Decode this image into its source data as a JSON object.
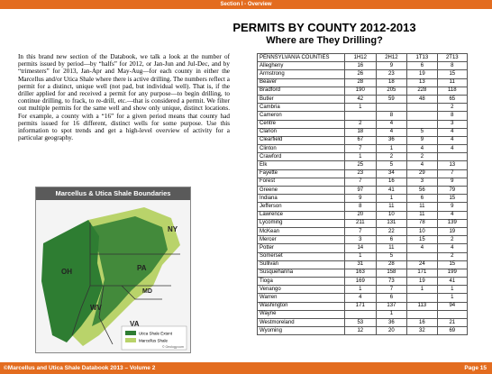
{
  "header": {
    "section": "Section I - Overview"
  },
  "title": {
    "main": "PERMITS BY COUNTY 2012-2013",
    "subtitle": "Where are They Drilling?"
  },
  "body_text": "In this brand new section of the Databook, we talk a look at the number of permits issued by period—by “halfs” for 2012, or Jan-Jun and Jul-Dec, and by “trimesters” for 2013, Jan-Apr and May-Aug—for each county in either the Marcellus and/or Utica Shale where there is active drilling. The numbers reflect a permit for a distinct, unique well (not pad, but individual well). That is, if the driller applied for and received a permit for any purpose—to begin drilling, to continue drilling, to frack, to re-drill, etc.—that is considered a permit. We filter out multiple permits for the same well and show only unique, distinct locations. For example, a county with a “16” for a given period means that county had permits issued for 16 different, distinct wells for some purpose. Use this information to spot trends and get a high-level overview of activity for a particular geography.",
  "map": {
    "title": "Marcellus & Utica Shale Boundaries",
    "states": [
      "NY",
      "PA",
      "OH",
      "WV",
      "MD",
      "VA"
    ],
    "legend": [
      "Utica Shale Extent",
      "Marcellus Shale"
    ],
    "credit": "© Geology.com",
    "colors": {
      "utica": "#2e7d32",
      "marcellus": "#b9d36a"
    }
  },
  "table": {
    "columns": [
      "PENNSYLVANIA COUNTIES",
      "1H12",
      "2H12",
      "1T13",
      "2T13"
    ],
    "rows": [
      [
        "Allegheny",
        "16",
        "9",
        "6",
        "8"
      ],
      [
        "Armstrong",
        "26",
        "23",
        "19",
        "15"
      ],
      [
        "Beaver",
        "28",
        "18",
        "13",
        "11"
      ],
      [
        "Bradford",
        "190",
        "205",
        "228",
        "118"
      ],
      [
        "Butler",
        "42",
        "59",
        "48",
        "65"
      ],
      [
        "Cambria",
        "1",
        "",
        "",
        "2"
      ],
      [
        "Cameron",
        "",
        "8",
        "",
        "8"
      ],
      [
        "Centre",
        "2",
        "4",
        "",
        "3"
      ],
      [
        "Clarion",
        "18",
        "4",
        "5",
        "4"
      ],
      [
        "Clearfield",
        "67",
        "36",
        "9",
        "4"
      ],
      [
        "Clinton",
        "7",
        "1",
        "4",
        "4"
      ],
      [
        "Crawford",
        "1",
        "2",
        "2",
        ""
      ],
      [
        "Elk",
        "25",
        "5",
        "4",
        "13"
      ],
      [
        "Fayette",
        "23",
        "34",
        "29",
        "7"
      ],
      [
        "Forest",
        "7",
        "16",
        "3",
        "9"
      ],
      [
        "Greene",
        "97",
        "41",
        "56",
        "79"
      ],
      [
        "Indiana",
        "9",
        "1",
        "6",
        "15"
      ],
      [
        "Jefferson",
        "8",
        "11",
        "11",
        "9"
      ],
      [
        "Lawrence",
        "20",
        "10",
        "11",
        "4"
      ],
      [
        "Lycoming",
        "211",
        "131",
        "78",
        "139"
      ],
      [
        "McKean",
        "7",
        "22",
        "10",
        "19"
      ],
      [
        "Mercer",
        "3",
        "6",
        "15",
        "2"
      ],
      [
        "Potter",
        "14",
        "11",
        "4",
        "4"
      ],
      [
        "Somerset",
        "1",
        "5",
        "",
        "2"
      ],
      [
        "Sullivan",
        "31",
        "28",
        "24",
        "15"
      ],
      [
        "Susquehanna",
        "163",
        "158",
        "171",
        "199"
      ],
      [
        "Tioga",
        "169",
        "73",
        "19",
        "41"
      ],
      [
        "Venango",
        "1",
        "7",
        "1",
        "1"
      ],
      [
        "Warren",
        "4",
        "6",
        "",
        "1"
      ],
      [
        "Washington",
        "171",
        "137",
        "113",
        "94"
      ],
      [
        "Wayne",
        "",
        "1",
        "",
        ""
      ],
      [
        "Westmoreland",
        "53",
        "36",
        "16",
        "21"
      ],
      [
        "Wyoming",
        "12",
        "20",
        "32",
        "69"
      ]
    ]
  },
  "footer": {
    "left": "©Marcellus and Utica Shale Databook 2013 – Volume 2",
    "right": "Page 15"
  }
}
